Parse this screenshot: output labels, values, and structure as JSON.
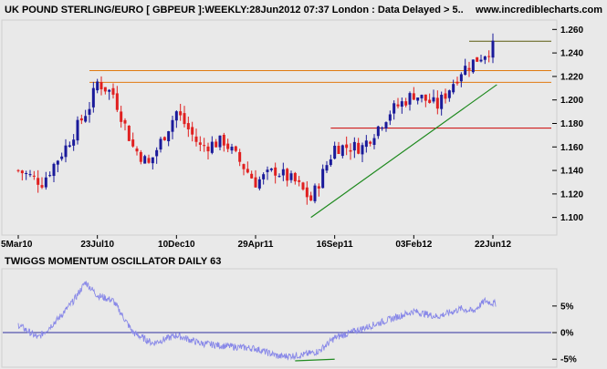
{
  "header": {
    "title": "UK POUND STERLING/EURO [ GBPEUR ]:WEEKLY:28Jun2012 07:37 London : Data Delayed > 5..",
    "site": "www.incrediblecharts.com"
  },
  "colors": {
    "background": "#e9e9e9",
    "up_candle": "#1a1a9a",
    "down_candle": "#e02020",
    "orange_line": "#e07a10",
    "red_line": "#cc0000",
    "trendline": "#1f8a1f",
    "olive_line": "#5a5a10",
    "oscillator": "#8888e8",
    "zero_line": "#3030a0"
  },
  "chart_data": [
    {
      "type": "candlestick",
      "title": "UK POUND STERLING/EURO [ GBPEUR ]:WEEKLY:28Jun2012 07:37 London : Data Delayed > 5..",
      "x_tick_labels": [
        "5Mar10",
        "23Jul10",
        "10Dec10",
        "29Apr11",
        "16Sep11",
        "03Feb12",
        "22Jun12"
      ],
      "y_tick_labels": [
        "1.100",
        "1.120",
        "1.140",
        "1.160",
        "1.180",
        "1.200",
        "1.220",
        "1.240",
        "1.260"
      ],
      "ylim": [
        1.085,
        1.268
      ],
      "grid": false,
      "series": [
        {
          "x": "2010-03-05",
          "close": 1.14
        },
        {
          "x": "2010-04-16",
          "close": 1.13
        },
        {
          "x": "2010-05-28",
          "close": 1.16
        },
        {
          "x": "2010-07-09",
          "close": 1.195
        },
        {
          "x": "2010-07-23",
          "close": 1.215
        },
        {
          "x": "2010-08-20",
          "close": 1.205
        },
        {
          "x": "2010-09-24",
          "close": 1.16
        },
        {
          "x": "2010-10-22",
          "close": 1.145
        },
        {
          "x": "2010-12-10",
          "close": 1.19
        },
        {
          "x": "2011-01-21",
          "close": 1.16
        },
        {
          "x": "2011-03-04",
          "close": 1.165
        },
        {
          "x": "2011-04-29",
          "close": 1.13
        },
        {
          "x": "2011-06-03",
          "close": 1.14
        },
        {
          "x": "2011-07-08",
          "close": 1.13
        },
        {
          "x": "2011-08-05",
          "close": 1.115
        },
        {
          "x": "2011-09-16",
          "close": 1.16
        },
        {
          "x": "2011-11-04",
          "close": 1.16
        },
        {
          "x": "2011-12-23",
          "close": 1.19
        },
        {
          "x": "2012-02-03",
          "close": 1.205
        },
        {
          "x": "2012-03-16",
          "close": 1.195
        },
        {
          "x": "2012-04-27",
          "close": 1.225
        },
        {
          "x": "2012-06-08",
          "close": 1.24
        },
        {
          "x": "2012-06-22",
          "close": 1.245
        }
      ],
      "horizontal_lines": [
        {
          "value": 1.25,
          "color": "olive",
          "from": "2012-05-11"
        },
        {
          "value": 1.225,
          "color": "orange",
          "from": "2010-07-09"
        },
        {
          "value": 1.215,
          "color": "orange",
          "from": "2010-07-09"
        },
        {
          "value": 1.176,
          "color": "red",
          "from": "2011-09-09"
        }
      ],
      "trendline": {
        "from": {
          "x": "2011-08-05",
          "y": 1.1
        },
        "to": {
          "x": "2012-06-29",
          "y": 1.213
        }
      }
    },
    {
      "type": "line",
      "title": "TWIGGS MOMENTUM OSCILLATOR DAILY 63",
      "y_tick_labels": [
        "5%",
        "0%",
        "-5%"
      ],
      "ylim": [
        -6.5,
        12
      ],
      "series": [
        {
          "x": [
            "2010-03-05",
            "2010-04-09",
            "2010-05-14",
            "2010-06-11",
            "2010-07-02",
            "2010-07-23",
            "2010-08-20",
            "2010-09-24",
            "2010-10-29",
            "2010-12-10",
            "2011-01-21",
            "2011-03-04",
            "2011-04-29",
            "2011-06-10",
            "2011-07-22",
            "2011-08-19",
            "2011-09-16",
            "2011-10-28",
            "2011-12-09",
            "2012-01-20",
            "2012-02-03",
            "2012-03-16",
            "2012-04-27",
            "2012-05-18",
            "2012-06-08",
            "2012-06-22"
          ],
          "values": [
            1.5,
            -1.0,
            2.5,
            6.0,
            9.5,
            7.0,
            6.0,
            0.0,
            -2.0,
            -0.5,
            -2.0,
            -2.5,
            -3.0,
            -4.5,
            -4.2,
            -3.5,
            -1.0,
            0.5,
            2.0,
            3.5,
            4.0,
            3.0,
            4.5,
            4.0,
            6.0,
            5.5
          ]
        }
      ],
      "support_segment": {
        "from": {
          "x": "2011-07-08",
          "y": -5.3
        },
        "to": {
          "x": "2011-09-16",
          "y": -5.0
        }
      }
    }
  ]
}
